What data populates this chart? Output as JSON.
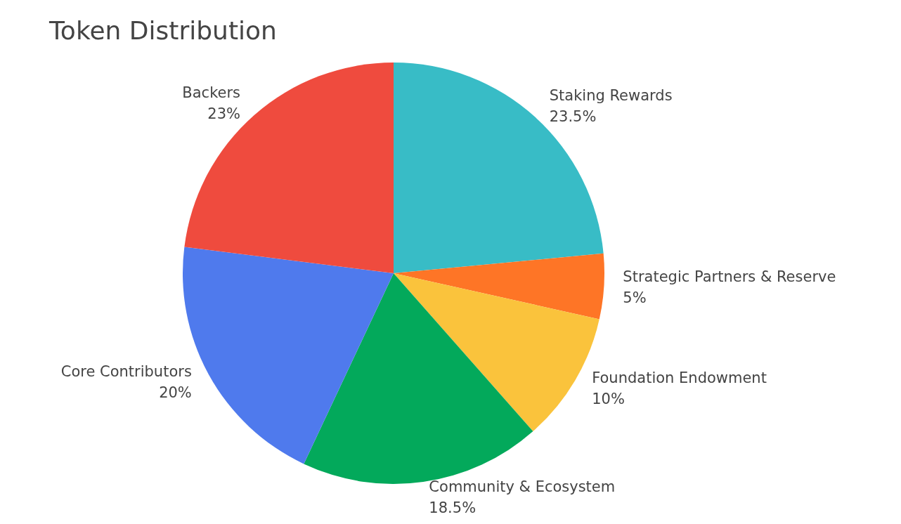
{
  "chart_data": {
    "type": "pie",
    "title": "Token Distribution",
    "categories": [
      "Staking Rewards",
      "Strategic Partners & Reserve",
      "Foundation Endowment",
      "Community & Ecosystem",
      "Core Contributors",
      "Backers"
    ],
    "values": [
      23.5,
      5,
      10,
      18.5,
      20,
      23
    ],
    "value_labels": [
      "23.5%",
      "5%",
      "10%",
      "18.5%",
      "20%",
      "23%"
    ],
    "colors": [
      "#38bcc6",
      "#fe7526",
      "#fac33c",
      "#03a95b",
      "#4f7aed",
      "#ef4b3e"
    ],
    "legend": false
  }
}
